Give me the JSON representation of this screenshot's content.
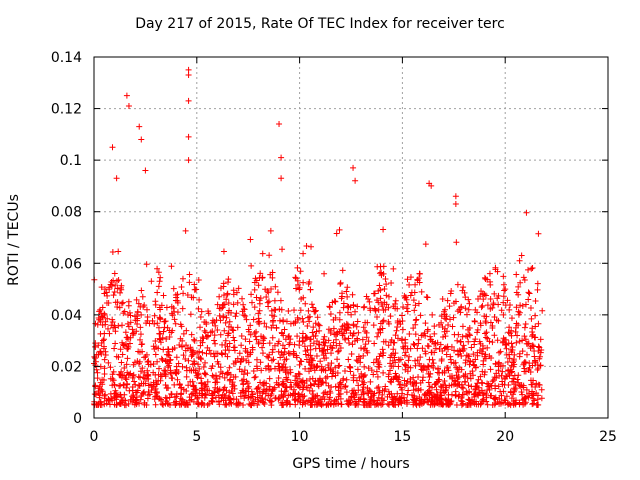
{
  "chart_data": {
    "type": "scatter",
    "title": "Day 217 of 2015, Rate Of TEC Index for receiver terc",
    "xlabel": "GPS time / hours",
    "ylabel": "ROTI / TECUs",
    "xlim": [
      0,
      25
    ],
    "ylim": [
      0,
      0.14
    ],
    "xticks": [
      0,
      5,
      10,
      15,
      20,
      25
    ],
    "yticks": [
      0,
      0.02,
      0.04,
      0.06,
      0.08,
      0.1,
      0.12,
      0.14
    ],
    "xtick_labels": [
      "0",
      "5",
      "10",
      "15",
      "20",
      "25"
    ],
    "ytick_labels": [
      "0",
      "0.02",
      "0.04",
      "0.06",
      "0.08",
      "0.1",
      "0.12",
      "0.14"
    ],
    "grid": true,
    "marker": "+",
    "color": "#ff0000",
    "x_data_range": [
      0,
      21.8
    ],
    "dense_band": {
      "typical_min": 0.005,
      "typical_max": 0.04
    },
    "notable_points": [
      {
        "x": 0.9,
        "y": 0.105
      },
      {
        "x": 1.1,
        "y": 0.093
      },
      {
        "x": 1.6,
        "y": 0.125
      },
      {
        "x": 1.7,
        "y": 0.121
      },
      {
        "x": 2.2,
        "y": 0.113
      },
      {
        "x": 2.3,
        "y": 0.108
      },
      {
        "x": 2.5,
        "y": 0.096
      },
      {
        "x": 4.6,
        "y": 0.135
      },
      {
        "x": 4.6,
        "y": 0.133
      },
      {
        "x": 4.6,
        "y": 0.123
      },
      {
        "x": 4.6,
        "y": 0.109
      },
      {
        "x": 4.6,
        "y": 0.1
      },
      {
        "x": 9.0,
        "y": 0.114
      },
      {
        "x": 9.1,
        "y": 0.101
      },
      {
        "x": 9.1,
        "y": 0.093
      },
      {
        "x": 12.6,
        "y": 0.097
      },
      {
        "x": 12.7,
        "y": 0.092
      },
      {
        "x": 16.3,
        "y": 0.091
      },
      {
        "x": 16.4,
        "y": 0.09
      },
      {
        "x": 17.6,
        "y": 0.086
      },
      {
        "x": 17.6,
        "y": 0.083
      },
      {
        "x": 20.8,
        "y": 0.063
      },
      {
        "x": 20.7,
        "y": 0.061
      }
    ]
  }
}
